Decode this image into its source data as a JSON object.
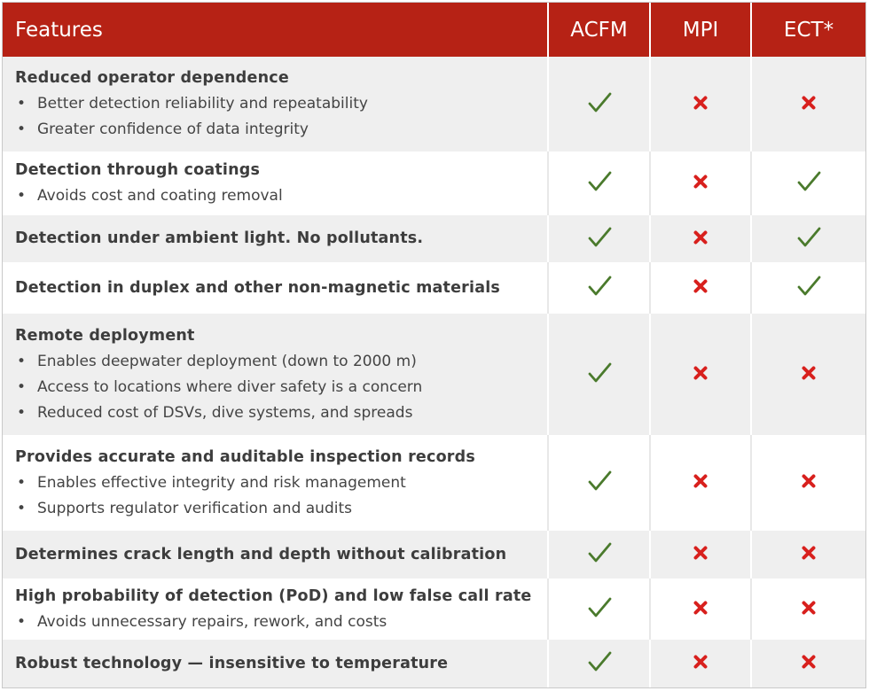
{
  "header": {
    "features": "Features",
    "acfm": "ACFM",
    "mpi": "MPI",
    "ect": "ECT*"
  },
  "colors": {
    "header_bg": "#b62215",
    "check": "#4a7a2c",
    "cross": "#d8201d",
    "row_shade": "#efefef"
  },
  "rows": [
    {
      "title": "Reduced operator dependence",
      "bullets": [
        "Better detection reliability and repeatability",
        "Greater confidence of data integrity"
      ],
      "acfm": "check",
      "mpi": "cross",
      "ect": "cross"
    },
    {
      "title": "Detection through coatings",
      "bullets": [
        "Avoids cost and coating removal"
      ],
      "acfm": "check",
      "mpi": "cross",
      "ect": "check"
    },
    {
      "title": "Detection under ambient light. No pollutants.",
      "bullets": [],
      "acfm": "check",
      "mpi": "cross",
      "ect": "check"
    },
    {
      "title": "Detection in duplex and other non-magnetic materials",
      "bullets": [],
      "acfm": "check",
      "mpi": "cross",
      "ect": "check"
    },
    {
      "title": "Remote deployment",
      "bullets": [
        "Enables deepwater deployment (down to 2000 m)",
        "Access to locations where diver safety is a concern",
        "Reduced cost of DSVs, dive systems, and spreads"
      ],
      "acfm": "check",
      "mpi": "cross",
      "ect": "cross"
    },
    {
      "title": "Provides accurate and auditable inspection records",
      "bullets": [
        "Enables effective integrity and risk management",
        "Supports regulator verification and audits"
      ],
      "acfm": "check",
      "mpi": "cross",
      "ect": "cross"
    },
    {
      "title": "Determines crack length and depth without calibration",
      "bullets": [],
      "acfm": "check",
      "mpi": "cross",
      "ect": "cross"
    },
    {
      "title": "High probability of detection (PoD) and low false call rate",
      "bullets": [
        "Avoids unnecessary repairs, rework, and costs"
      ],
      "acfm": "check",
      "mpi": "cross",
      "ect": "cross"
    },
    {
      "title": "Robust technology — insensitive to temperature",
      "bullets": [],
      "acfm": "check",
      "mpi": "cross",
      "ect": "cross"
    }
  ]
}
